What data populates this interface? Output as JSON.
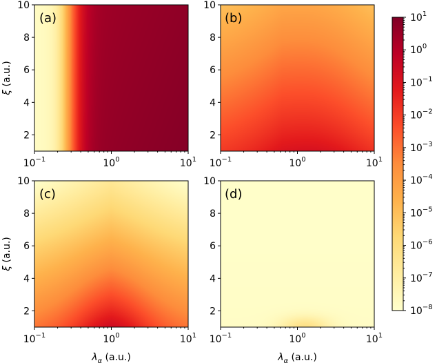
{
  "chart_data": {
    "type": "heatmap",
    "colormap": "YlOrRd",
    "colorbar": {
      "scale": "log",
      "range": [
        1e-08,
        10
      ],
      "ticks": [
        {
          "base": "10",
          "exp": "1"
        },
        {
          "base": "10",
          "exp": "0"
        },
        {
          "base": "10",
          "exp": "−1"
        },
        {
          "base": "10",
          "exp": "−2"
        },
        {
          "base": "10",
          "exp": "−3"
        },
        {
          "base": "10",
          "exp": "−4"
        },
        {
          "base": "10",
          "exp": "−5"
        },
        {
          "base": "10",
          "exp": "−6"
        },
        {
          "base": "10",
          "exp": "−7"
        },
        {
          "base": "10",
          "exp": "−8"
        }
      ],
      "tick_values_log10": [
        1,
        0,
        -1,
        -2,
        -3,
        -4,
        -5,
        -6,
        -7,
        -8
      ]
    },
    "x_axis": {
      "label_symbol": "λ",
      "label_sub": "α",
      "label_unit": " (a.u.)",
      "scale": "log",
      "range": [
        0.1,
        10
      ],
      "ticks": [
        {
          "base": "10",
          "exp": "−1"
        },
        {
          "base": "10",
          "exp": "0"
        },
        {
          "base": "10",
          "exp": "1"
        }
      ]
    },
    "y_axis": {
      "label_symbol": "ξ",
      "label_unit": " (a.u.)",
      "scale": "linear",
      "range": [
        1,
        10
      ],
      "ticks": [
        "2",
        "4",
        "6",
        "8",
        "10"
      ]
    },
    "panels": [
      {
        "label": "(a)",
        "description": "strong signal for large lambda, weak for lambda below ~0.3, nearly independent of xi",
        "log10_min": -8,
        "log10_max": 0.9
      },
      {
        "label": "(b)",
        "description": "moderate signal, maximum near lambda ~1-5 at small xi, decreasing with xi",
        "log10_min": -5,
        "log10_max": -1.3
      },
      {
        "label": "(c)",
        "description": "peak near lambda ~1 at small xi, decays away",
        "log10_min": -7.5,
        "log10_max": -1.8
      },
      {
        "label": "(d)",
        "description": "very weak, small bump near lambda ~1 at xi ~1",
        "log10_min": -8,
        "log10_max": -6.8
      }
    ]
  }
}
